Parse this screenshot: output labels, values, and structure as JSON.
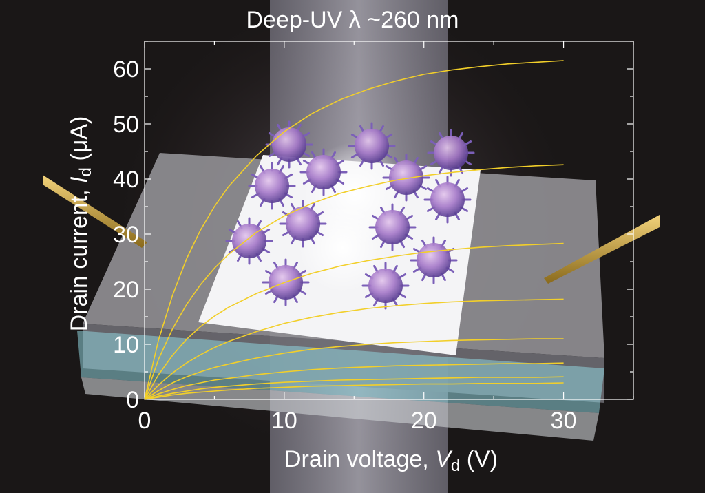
{
  "chart_data": {
    "type": "line",
    "title": "Deep-UV λ ~260 nm",
    "xlabel": {
      "text": "Drain voltage, ",
      "var": "V",
      "sub": "d",
      "unit": " (V)"
    },
    "ylabel": {
      "text": "Drain current, ",
      "var": "I",
      "sub": "d",
      "unit": " (μA)"
    },
    "xlim": [
      0,
      35
    ],
    "ylim": [
      0,
      65
    ],
    "xticks": [
      0,
      10,
      20,
      30
    ],
    "yticks": [
      0,
      10,
      20,
      30,
      40,
      50,
      60
    ],
    "grid": false,
    "legend": "none",
    "x": [
      0,
      1,
      2,
      3,
      4,
      5,
      6,
      8,
      10,
      12,
      14,
      16,
      18,
      20,
      22,
      24,
      26,
      28,
      30
    ],
    "series": [
      {
        "values": [
          0,
          10.8,
          18.9,
          25.5,
          30.7,
          35.0,
          38.6,
          44.2,
          48.6,
          51.9,
          54.4,
          56.3,
          57.8,
          59.0,
          59.8,
          60.4,
          60.9,
          61.2,
          61.5
        ]
      },
      {
        "values": [
          0,
          7.3,
          12.8,
          17.2,
          20.8,
          23.8,
          26.3,
          30.3,
          33.3,
          35.6,
          37.4,
          38.7,
          39.8,
          40.6,
          41.2,
          41.7,
          42.1,
          42.4,
          42.6
        ]
      },
      {
        "values": [
          0,
          4.5,
          8.0,
          10.9,
          13.2,
          15.1,
          16.7,
          19.2,
          21.2,
          22.9,
          24.2,
          25.2,
          26.0,
          26.7,
          27.2,
          27.6,
          27.9,
          28.1,
          28.3
        ]
      },
      {
        "values": [
          0,
          2.6,
          4.8,
          6.6,
          8.1,
          9.4,
          10.5,
          12.3,
          13.8,
          14.9,
          15.8,
          16.5,
          17.0,
          17.4,
          17.7,
          17.9,
          18.0,
          18.1,
          18.2
        ]
      },
      {
        "values": [
          0,
          1.6,
          3.0,
          4.1,
          5.0,
          5.8,
          6.4,
          7.5,
          8.4,
          9.1,
          9.6,
          10.0,
          10.3,
          10.5,
          10.7,
          10.8,
          10.9,
          11.0,
          11.0
        ]
      },
      {
        "values": [
          0,
          1.0,
          1.8,
          2.5,
          3.0,
          3.5,
          3.8,
          4.5,
          5.0,
          5.4,
          5.7,
          5.9,
          6.1,
          6.2,
          6.3,
          6.4,
          6.5,
          6.5,
          6.6
        ]
      },
      {
        "values": [
          0,
          0.6,
          1.1,
          1.5,
          1.9,
          2.2,
          2.4,
          2.8,
          3.1,
          3.3,
          3.5,
          3.6,
          3.7,
          3.8,
          3.9,
          4.0,
          4.0,
          4.0,
          4.1
        ]
      },
      {
        "values": [
          0,
          0.4,
          0.8,
          1.1,
          1.3,
          1.5,
          1.7,
          2.0,
          2.2,
          2.4,
          2.5,
          2.6,
          2.7,
          2.8,
          2.8,
          2.9,
          2.9,
          2.9,
          3.0
        ]
      }
    ],
    "colors": {
      "curve": "#f2cf2a",
      "axes": "#ffffff",
      "background": "#1a1717",
      "substrate": "#8fd3dd"
    }
  }
}
